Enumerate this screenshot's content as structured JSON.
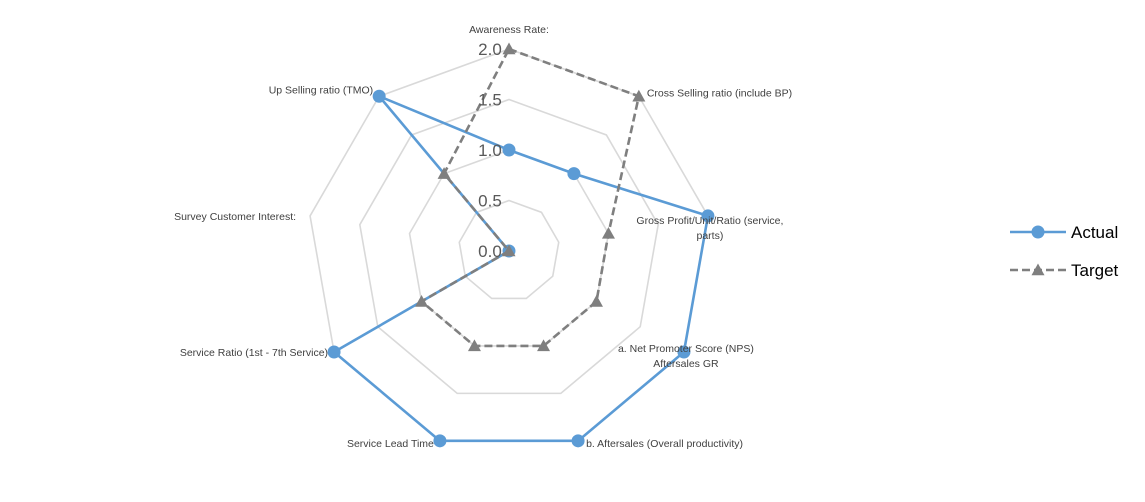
{
  "chart_data": {
    "type": "radar",
    "categories": [
      [
        "Awareness Rate:"
      ],
      [
        "Cross Selling ratio (include BP)"
      ],
      [
        "Gross Profit/Unit/Ratio (service,",
        "parts)"
      ],
      [
        "a. Net Promoter Score (NPS)",
        "Aftersales GR"
      ],
      [
        "b. Aftersales (Overall productivity)"
      ],
      [
        "Service Lead Time"
      ],
      [
        "Service Ratio (1st - 7th Service)"
      ],
      [
        "Survey Customer Interest:"
      ],
      [
        "Up Selling ratio  (TMO)"
      ]
    ],
    "r_ticks": [
      "0.0",
      "0.5",
      "1.0",
      "1.5",
      "2.0"
    ],
    "r_range": [
      0,
      2
    ],
    "grid": true,
    "legend_position": "right",
    "series": [
      {
        "name": "Actual",
        "values": [
          1.0,
          1.0,
          2.0,
          2.0,
          2.0,
          2.0,
          2.0,
          0.0,
          2.0
        ],
        "color": "#5b9bd5",
        "marker": "circle",
        "dash": "solid"
      },
      {
        "name": "Target",
        "values": [
          2.0,
          2.0,
          1.0,
          1.0,
          1.0,
          1.0,
          1.0,
          0.0,
          1.0
        ],
        "color": "#7f7f7f",
        "marker": "triangle",
        "dash": "dashed"
      }
    ]
  }
}
